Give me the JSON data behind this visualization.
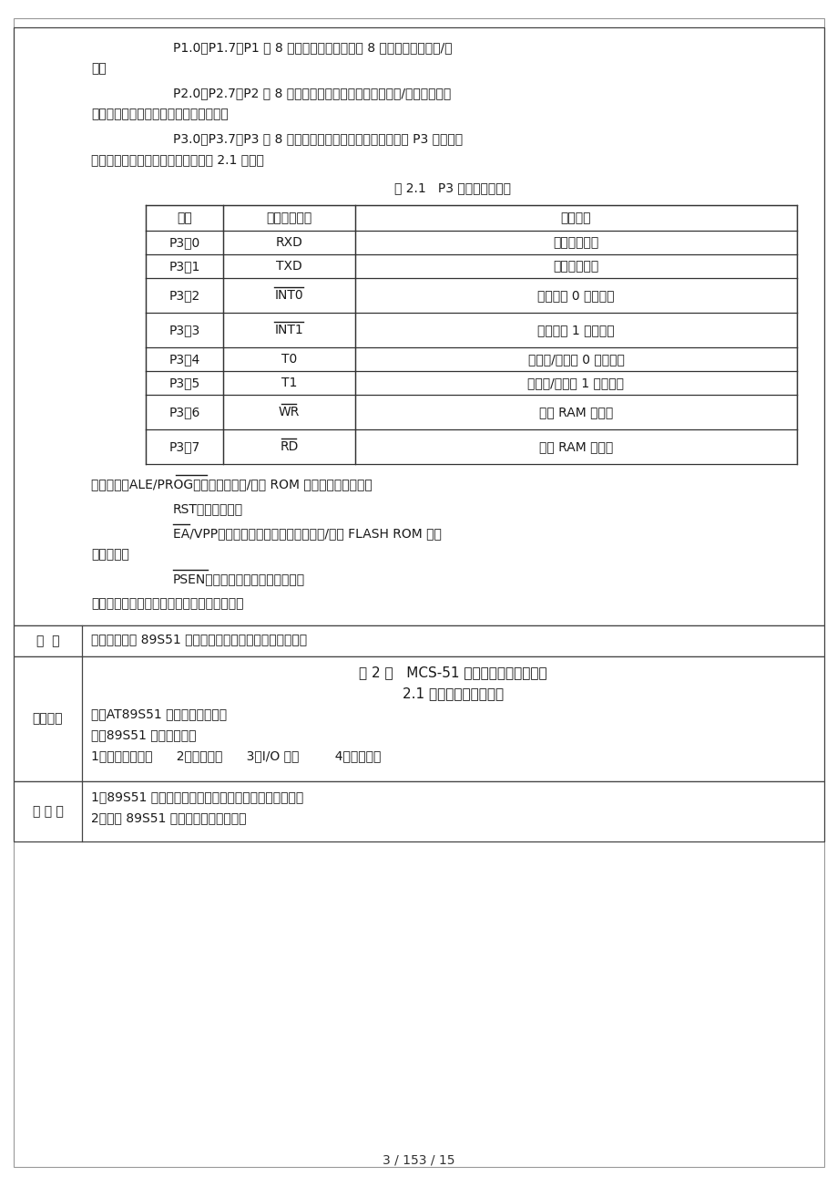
{
  "page_bg": "#ffffff",
  "summary_label": "总  结",
  "summary_text": "通过视图掌握 89S51 芯片每部结构和各引脚名称及功能。",
  "board_label": "板书设计",
  "board_lines": [
    {
      "center": true,
      "text": "第 2 章   MCS-51 系列单片机的系统结构"
    },
    {
      "center": true,
      "text": "2.1 内部结构与引脚功能"
    },
    {
      "center": false,
      "text": "一、AT89S51 单片机的内部结构"
    },
    {
      "center": false,
      "text": "二、89S51 芯片引脚功能"
    },
    {
      "center": false,
      "text": "1、工作电源引脚      2、晶振引脚      3、I/O 引脚         4、控制引脚"
    }
  ],
  "thought_label": "思 考 题",
  "thought_lines": [
    "1．89S51 单片机内部有哪些主要部件？其功能是什么？",
    "2．简述 89S51 几个控制引脚的功能。"
  ],
  "table_rows": [
    [
      "P3．0",
      "RXD",
      "串行数据输入",
      false
    ],
    [
      "P3．1",
      "TXD",
      "串行数据输出",
      false
    ],
    [
      "P3．2",
      "INT0",
      "外部中断 0 请求输入",
      true
    ],
    [
      "P3．3",
      "INT1",
      "外部中断 1 请求输入",
      true
    ],
    [
      "P3．4",
      "T0",
      "定时器/计数器 0 外部输入",
      false
    ],
    [
      "P3．5",
      "T1",
      "定时器/计数器 1 外部输入",
      false
    ],
    [
      "P3．6",
      "WR",
      "外部 RAM 写选通",
      true
    ],
    [
      "P3．7",
      "RD",
      "外部 RAM 读选通",
      true
    ]
  ]
}
